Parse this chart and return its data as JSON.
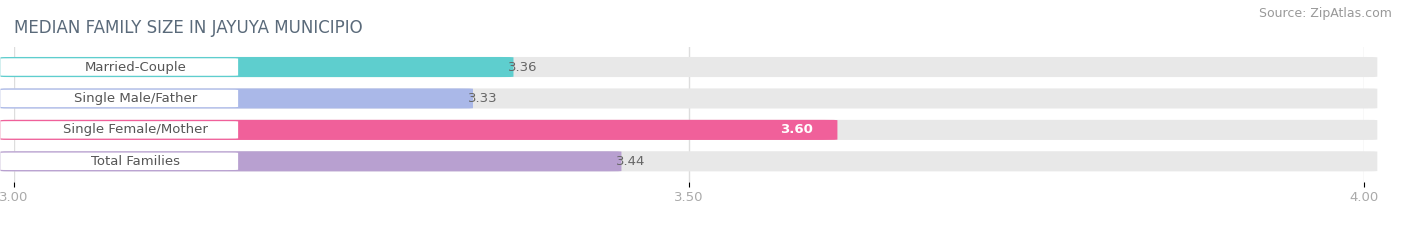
{
  "title": "MEDIAN FAMILY SIZE IN JAYUYA MUNICIPIO",
  "source": "Source: ZipAtlas.com",
  "categories": [
    "Married-Couple",
    "Single Male/Father",
    "Single Female/Mother",
    "Total Families"
  ],
  "values": [
    3.36,
    3.33,
    3.6,
    3.44
  ],
  "bar_colors": [
    "#5ecece",
    "#aab8e8",
    "#f0609a",
    "#b8a0d0"
  ],
  "value_colors": [
    "#666666",
    "#666666",
    "#ffffff",
    "#666666"
  ],
  "xlim": [
    3.0,
    4.0
  ],
  "xticks": [
    3.0,
    3.5,
    4.0
  ],
  "xtick_labels": [
    "3.00",
    "3.50",
    "4.00"
  ],
  "bar_height": 0.62,
  "background_color": "#ffffff",
  "bar_bg_color": "#e8e8e8",
  "title_color": "#5a6a7a",
  "title_fontsize": 12,
  "label_fontsize": 9.5,
  "value_fontsize": 9.5,
  "source_fontsize": 9,
  "source_color": "#999999",
  "tick_color": "#aaaaaa",
  "grid_color": "#dddddd"
}
